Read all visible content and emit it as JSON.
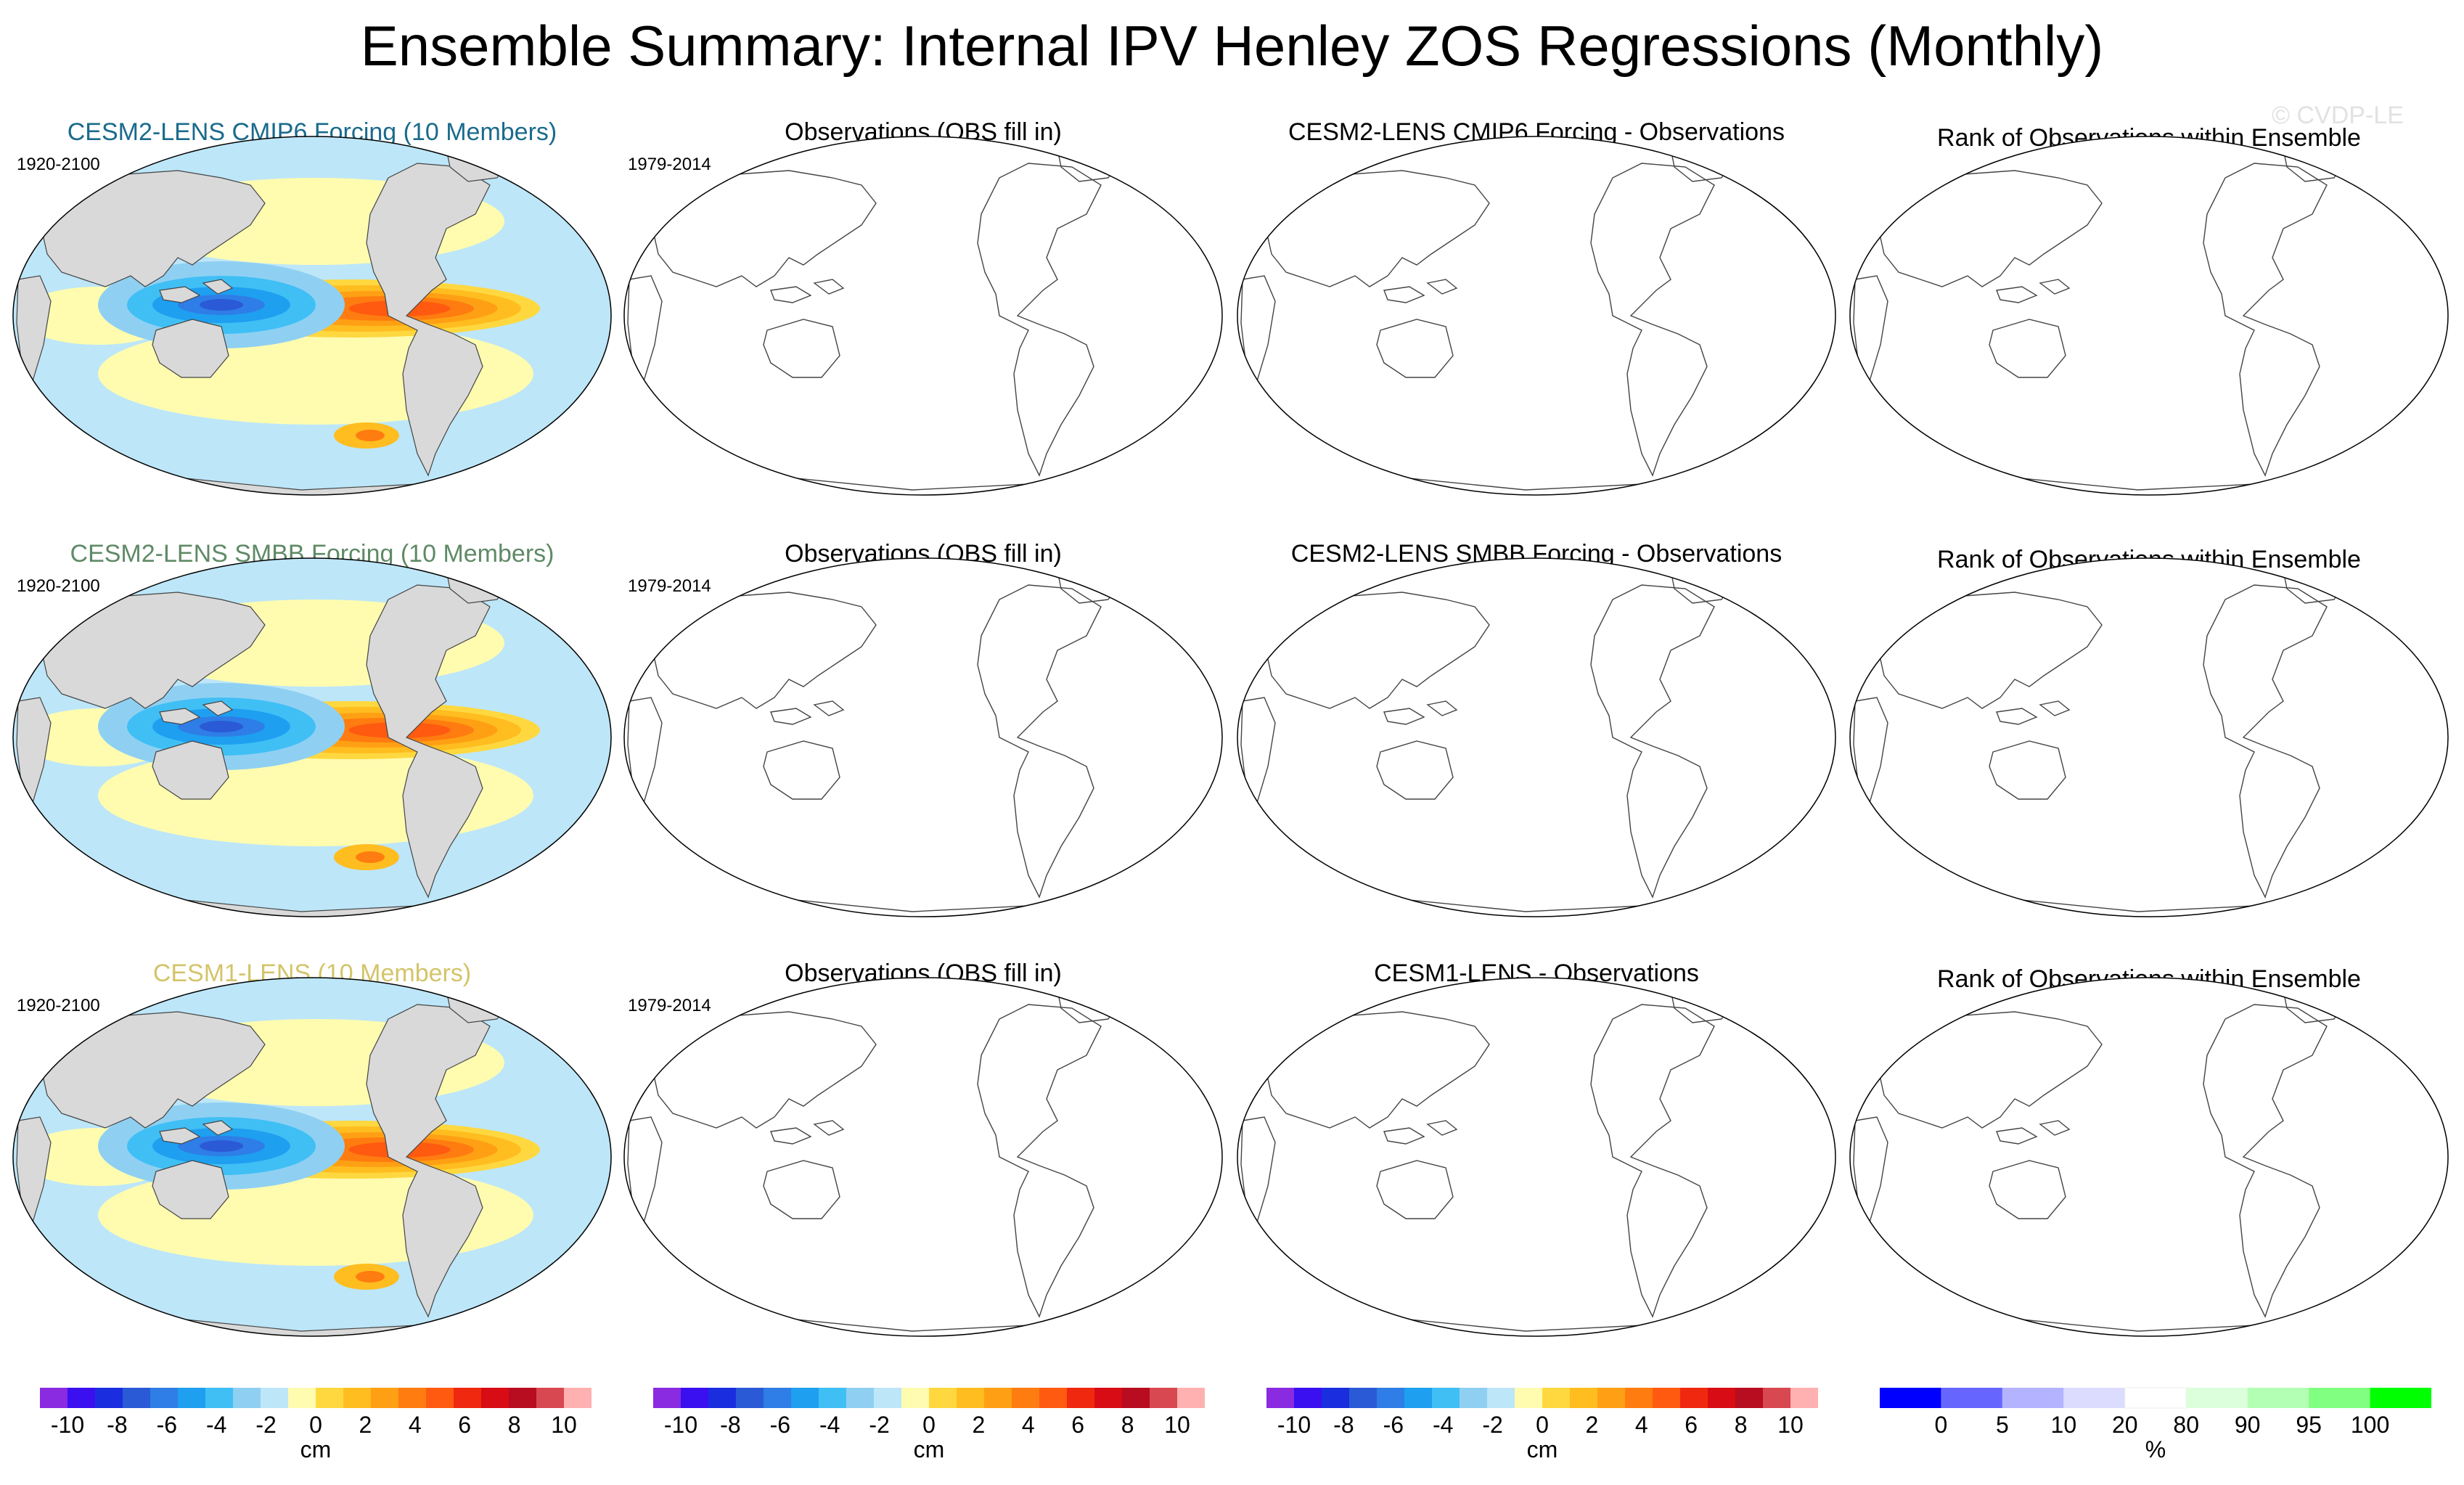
{
  "title": "Ensemble Summary: Internal IPV Henley ZOS Regressions (Monthly)",
  "watermark": "© CVDP-LE",
  "rows": [
    {
      "ensemble_title": "CESM2-LENS CMIP6 Forcing (10 Members)",
      "ensemble_color": "#1a6b8c",
      "model_period": "1920-2100",
      "obs_title": "Observations (OBS fill in)",
      "obs_period": "1979-2014",
      "diff_title": "CESM2-LENS CMIP6 Forcing - Observations",
      "rank_title": "Rank of Observations within Ensemble"
    },
    {
      "ensemble_title": "CESM2-LENS SMBB Forcing (10 Members)",
      "ensemble_color": "#5f8a66",
      "model_period": "1920-2100",
      "obs_title": "Observations (OBS fill in)",
      "obs_period": "1979-2014",
      "diff_title": "CESM2-LENS SMBB Forcing - Observations",
      "rank_title": "Rank of Observations within Ensemble"
    },
    {
      "ensemble_title": "CESM1-LENS (10 Members)",
      "ensemble_color": "#d4c46a",
      "model_period": "1920-2100",
      "obs_title": "Observations (OBS fill in)",
      "obs_period": "1979-2014",
      "diff_title": "CESM1-LENS - Observations",
      "rank_title": "Rank of Observations within Ensemble"
    }
  ],
  "colorbars": [
    {
      "unit": "cm",
      "ticks": [
        "-10",
        "-8",
        "-6",
        "-4",
        "-2",
        "0",
        "2",
        "4",
        "6",
        "8",
        "10"
      ],
      "colors": [
        "#8a2be2",
        "#3a0ff0",
        "#1a2ee0",
        "#2b5ad6",
        "#2f7de6",
        "#1e9ff0",
        "#40bff5",
        "#8fd0f2",
        "#bde6f8",
        "#fffcb0",
        "#ffd840",
        "#ffbd20",
        "#ffa014",
        "#ff7c10",
        "#ff5a10",
        "#f02810",
        "#d80c14",
        "#b80c20",
        "#d84850",
        "#ffb0b0"
      ]
    },
    {
      "unit": "cm",
      "ticks": [
        "-10",
        "-8",
        "-6",
        "-4",
        "-2",
        "0",
        "2",
        "4",
        "6",
        "8",
        "10"
      ],
      "colors": [
        "#8a2be2",
        "#3a0ff0",
        "#1a2ee0",
        "#2b5ad6",
        "#2f7de6",
        "#1e9ff0",
        "#40bff5",
        "#8fd0f2",
        "#bde6f8",
        "#fffcb0",
        "#ffd840",
        "#ffbd20",
        "#ffa014",
        "#ff7c10",
        "#ff5a10",
        "#f02810",
        "#d80c14",
        "#b80c20",
        "#d84850",
        "#ffb0b0"
      ]
    },
    {
      "unit": "cm",
      "ticks": [
        "-10",
        "-8",
        "-6",
        "-4",
        "-2",
        "0",
        "2",
        "4",
        "6",
        "8",
        "10"
      ],
      "colors": [
        "#8a2be2",
        "#3a0ff0",
        "#1a2ee0",
        "#2b5ad6",
        "#2f7de6",
        "#1e9ff0",
        "#40bff5",
        "#8fd0f2",
        "#bde6f8",
        "#fffcb0",
        "#ffd840",
        "#ffbd20",
        "#ffa014",
        "#ff7c10",
        "#ff5a10",
        "#f02810",
        "#d80c14",
        "#b80c20",
        "#d84850",
        "#ffb0b0"
      ]
    },
    {
      "unit": "%",
      "ticks": [
        "0",
        "5",
        "10",
        "20",
        "80",
        "90",
        "95",
        "100"
      ],
      "colors": [
        "#0000ff",
        "#6666ff",
        "#b3b3ff",
        "#dcdcff",
        "#ffffff",
        "#dcffdc",
        "#b3ffb3",
        "#80ff80",
        "#00ff00"
      ],
      "boundaries": [
        0,
        5,
        10,
        20,
        80,
        90,
        95,
        100
      ]
    }
  ],
  "map_colors": {
    "land": "#d9d9d9",
    "ocean_neutral": "#fffcb0",
    "ocean_negative": "#bde6f8"
  }
}
